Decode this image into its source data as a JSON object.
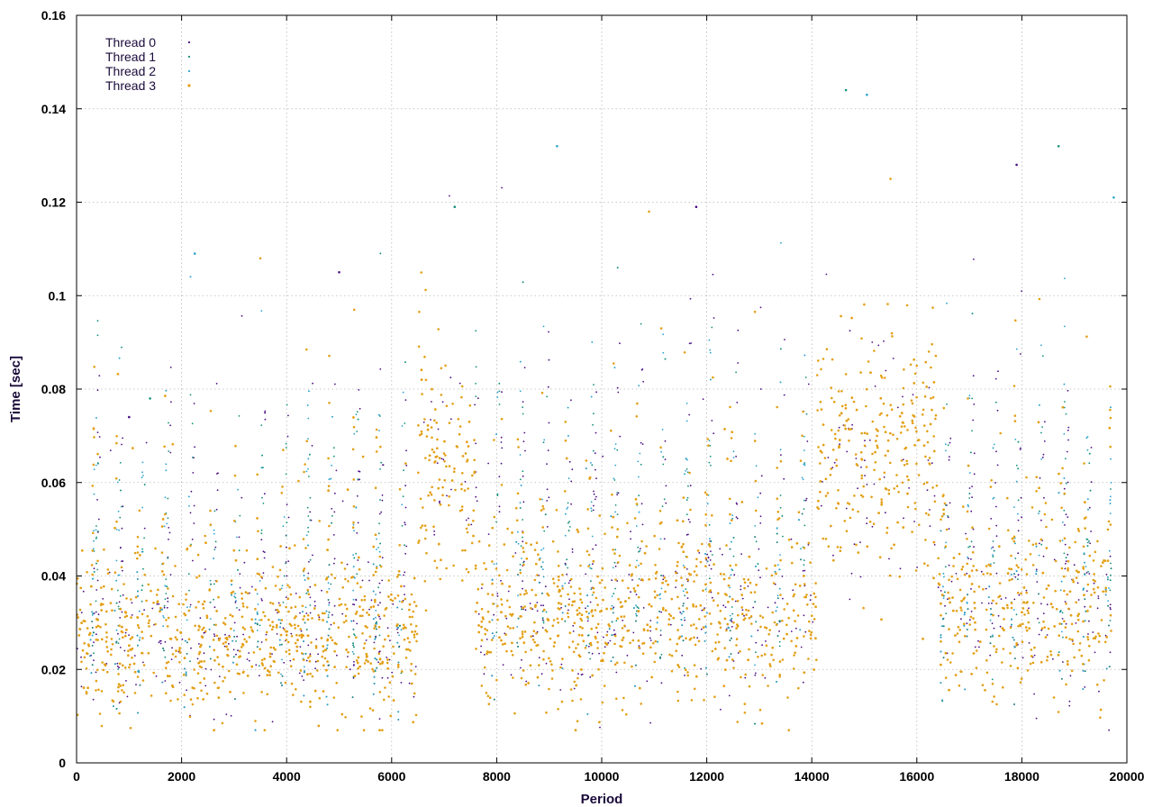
{
  "chart_data": {
    "type": "scatter",
    "title": "",
    "xlabel": "Period",
    "ylabel": "Time [sec]",
    "xlim": [
      0,
      20000
    ],
    "ylim": [
      0,
      0.16
    ],
    "x_ticks": [
      "0",
      "2000",
      "4000",
      "6000",
      "8000",
      "10000",
      "12000",
      "14000",
      "16000",
      "18000",
      "20000"
    ],
    "y_ticks": [
      "0",
      "0.02",
      "0.04",
      "0.06",
      "0.08",
      "0.1",
      "0.12",
      "0.14",
      "0.16"
    ],
    "grid": true,
    "legend_position": "top-left",
    "x_extent": [
      0,
      19700
    ],
    "series": [
      {
        "name": "Thread 0",
        "color": "#4b0d85"
      },
      {
        "name": "Thread 1",
        "color": "#13907c"
      },
      {
        "name": "Thread 2",
        "color": "#2aa3cf"
      },
      {
        "name": "Thread 3",
        "color": "#e3a017"
      }
    ],
    "regimes": [
      {
        "x": [
          0,
          6500
        ],
        "median": 0.026,
        "spread": 0.008,
        "note": "bursty ~0.02-0.04 with spikes"
      },
      {
        "x": [
          6500,
          7600
        ],
        "median": 0.063,
        "spread": 0.012
      },
      {
        "x": [
          7600,
          14100
        ],
        "median": 0.03,
        "spread": 0.009
      },
      {
        "x": [
          14100,
          16400
        ],
        "median": 0.066,
        "spread": 0.013
      },
      {
        "x": [
          16400,
          19700
        ],
        "median": 0.032,
        "spread": 0.009
      }
    ],
    "spikes": [
      [
        1000,
        0.074
      ],
      [
        1400,
        0.078
      ],
      [
        2250,
        0.109
      ],
      [
        3500,
        0.108
      ],
      [
        5000,
        0.105
      ],
      [
        7200,
        0.119
      ],
      [
        9150,
        0.132
      ],
      [
        10900,
        0.118
      ],
      [
        11800,
        0.119
      ],
      [
        14650,
        0.144
      ],
      [
        15050,
        0.143
      ],
      [
        15500,
        0.125
      ],
      [
        17900,
        0.128
      ],
      [
        18700,
        0.132
      ],
      [
        19750,
        0.121
      ]
    ]
  }
}
